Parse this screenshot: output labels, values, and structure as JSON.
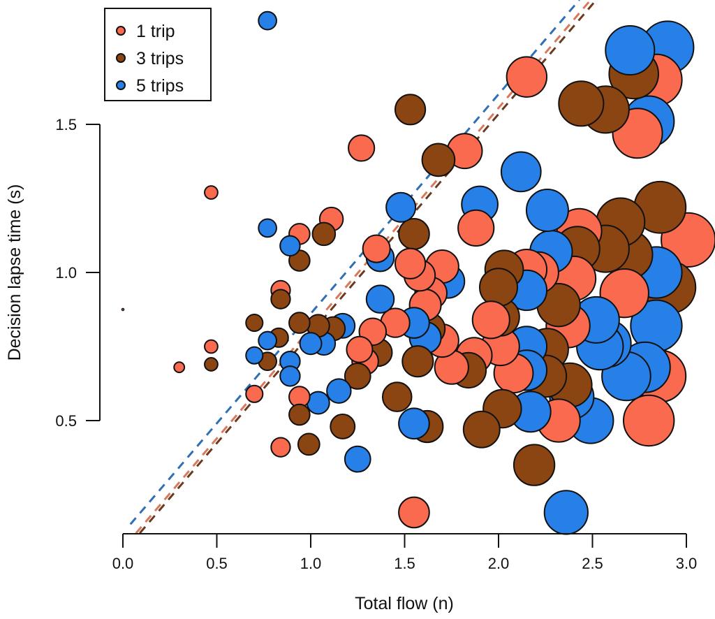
{
  "chart_data": {
    "type": "scatter",
    "title": "",
    "xlabel": "Total flow (n)",
    "ylabel": "Decision lapse time (s)",
    "xlim": [
      0.0,
      3.0
    ],
    "ylim": [
      0.12,
      1.92
    ],
    "x_ticks": [
      "0.0",
      "0.5",
      "1.0",
      "1.5",
      "2.0",
      "2.5",
      "3.0"
    ],
    "y_ticks": [
      "0.5",
      "1.0",
      "1.5"
    ],
    "grid": false,
    "legend_position": "top-left",
    "point_size_encodes": "total flow",
    "series": [
      {
        "name": "1 trip",
        "color": "#FA6A4E",
        "points": [
          [
            0.3,
            0.68
          ],
          [
            0.47,
            1.27
          ],
          [
            0.47,
            0.75
          ],
          [
            0.7,
            0.59
          ],
          [
            0.84,
            0.94
          ],
          [
            0.84,
            0.41
          ],
          [
            0.94,
            1.13
          ],
          [
            0.94,
            0.58
          ],
          [
            1.11,
            1.18
          ],
          [
            1.26,
            0.74
          ],
          [
            1.27,
            1.42
          ],
          [
            1.29,
            0.7
          ],
          [
            1.33,
            0.8
          ],
          [
            1.35,
            1.08
          ],
          [
            1.45,
            0.83
          ],
          [
            1.53,
            1.03
          ],
          [
            1.55,
            0.19
          ],
          [
            1.58,
            0.99
          ],
          [
            1.61,
            0.89
          ],
          [
            1.64,
            0.93
          ],
          [
            1.7,
            1.02
          ],
          [
            1.7,
            0.77
          ],
          [
            1.75,
            0.68
          ],
          [
            1.82,
            1.41
          ],
          [
            1.87,
            0.72
          ],
          [
            1.88,
            1.15
          ],
          [
            1.96,
            0.84
          ],
          [
            2.01,
            0.75
          ],
          [
            2.08,
            0.66
          ],
          [
            2.15,
            1.66
          ],
          [
            2.15,
            1.01
          ],
          [
            2.21,
            1.0
          ],
          [
            2.32,
            0.5
          ],
          [
            2.37,
            0.82
          ],
          [
            2.4,
            0.98
          ],
          [
            2.43,
            1.14
          ],
          [
            2.67,
            0.93
          ],
          [
            2.74,
            1.47
          ],
          [
            2.8,
            0.5
          ],
          [
            2.84,
            1.65
          ],
          [
            2.86,
            0.65
          ],
          [
            3.01,
            1.11
          ]
        ]
      },
      {
        "name": "3 trips",
        "color": "#8B4513",
        "points": [
          [
            0.47,
            0.69
          ],
          [
            0.7,
            0.83
          ],
          [
            0.77,
            0.7
          ],
          [
            0.83,
            0.78
          ],
          [
            0.84,
            0.91
          ],
          [
            0.94,
            1.04
          ],
          [
            0.94,
            0.83
          ],
          [
            0.94,
            0.52
          ],
          [
            0.99,
            0.42
          ],
          [
            1.04,
            0.82
          ],
          [
            1.07,
            1.13
          ],
          [
            1.12,
            0.81
          ],
          [
            1.17,
            0.48
          ],
          [
            1.25,
            0.65
          ],
          [
            1.36,
            0.73
          ],
          [
            1.46,
            0.58
          ],
          [
            1.53,
            1.55
          ],
          [
            1.55,
            1.13
          ],
          [
            1.57,
            0.7
          ],
          [
            1.62,
            0.48
          ],
          [
            1.63,
            0.81
          ],
          [
            1.68,
            1.38
          ],
          [
            1.84,
            0.67
          ],
          [
            1.91,
            0.47
          ],
          [
            2.0,
            0.95
          ],
          [
            2.01,
            0.85
          ],
          [
            2.02,
            0.54
          ],
          [
            2.03,
            1.01
          ],
          [
            2.19,
            0.35
          ],
          [
            2.25,
            0.65
          ],
          [
            2.26,
            0.74
          ],
          [
            2.32,
            0.89
          ],
          [
            2.38,
            0.62
          ],
          [
            2.42,
            1.08
          ],
          [
            2.44,
            1.57
          ],
          [
            2.57,
            1.55
          ],
          [
            2.57,
            1.08
          ],
          [
            2.65,
            1.17
          ],
          [
            2.69,
            1.06
          ],
          [
            2.72,
            1.67
          ],
          [
            2.86,
            1.22
          ],
          [
            2.91,
            0.95
          ]
        ]
      },
      {
        "name": "5 trips",
        "color": "#2680E8",
        "points": [
          [
            0.7,
            0.72
          ],
          [
            0.77,
            1.85
          ],
          [
            0.77,
            1.15
          ],
          [
            0.77,
            0.77
          ],
          [
            0.89,
            1.09
          ],
          [
            0.89,
            0.7
          ],
          [
            0.89,
            0.65
          ],
          [
            1.0,
            0.76
          ],
          [
            1.04,
            0.56
          ],
          [
            1.07,
            0.76
          ],
          [
            1.15,
            0.6
          ],
          [
            1.17,
            0.82
          ],
          [
            1.25,
            0.37
          ],
          [
            1.37,
            1.05
          ],
          [
            1.37,
            0.91
          ],
          [
            1.48,
            1.22
          ],
          [
            1.55,
            0.83
          ],
          [
            1.55,
            0.49
          ],
          [
            1.61,
            0.78
          ],
          [
            1.73,
            0.97
          ],
          [
            1.9,
            1.23
          ],
          [
            2.12,
            1.34
          ],
          [
            2.15,
            0.94
          ],
          [
            2.15,
            0.75
          ],
          [
            2.15,
            0.67
          ],
          [
            2.17,
            0.53
          ],
          [
            2.26,
            1.21
          ],
          [
            2.28,
            1.07
          ],
          [
            2.36,
            0.19
          ],
          [
            2.39,
            0.58
          ],
          [
            2.49,
            0.5
          ],
          [
            2.52,
            0.84
          ],
          [
            2.54,
            0.75
          ],
          [
            2.58,
            0.76
          ],
          [
            2.68,
            0.65
          ],
          [
            2.7,
            1.75
          ],
          [
            2.78,
            0.68
          ],
          [
            2.8,
            1.51
          ],
          [
            2.84,
            1.0
          ],
          [
            2.84,
            0.82
          ],
          [
            2.9,
            1.76
          ]
        ]
      }
    ],
    "reference_lines": [
      {
        "name": "1 trip fit",
        "color": "#D9785A",
        "style": "dashed",
        "x": [
          0.07,
          2.49
        ],
        "y": [
          0.12,
          1.92
        ]
      },
      {
        "name": "3 trips fit",
        "color": "#6B3A1E",
        "style": "dashed",
        "x": [
          0.09,
          2.52
        ],
        "y": [
          0.12,
          1.92
        ]
      },
      {
        "name": "5 trips fit",
        "color": "#2F6FB5",
        "style": "dashed",
        "x": [
          0.04,
          2.43
        ],
        "y": [
          0.15,
          1.92
        ]
      }
    ]
  }
}
